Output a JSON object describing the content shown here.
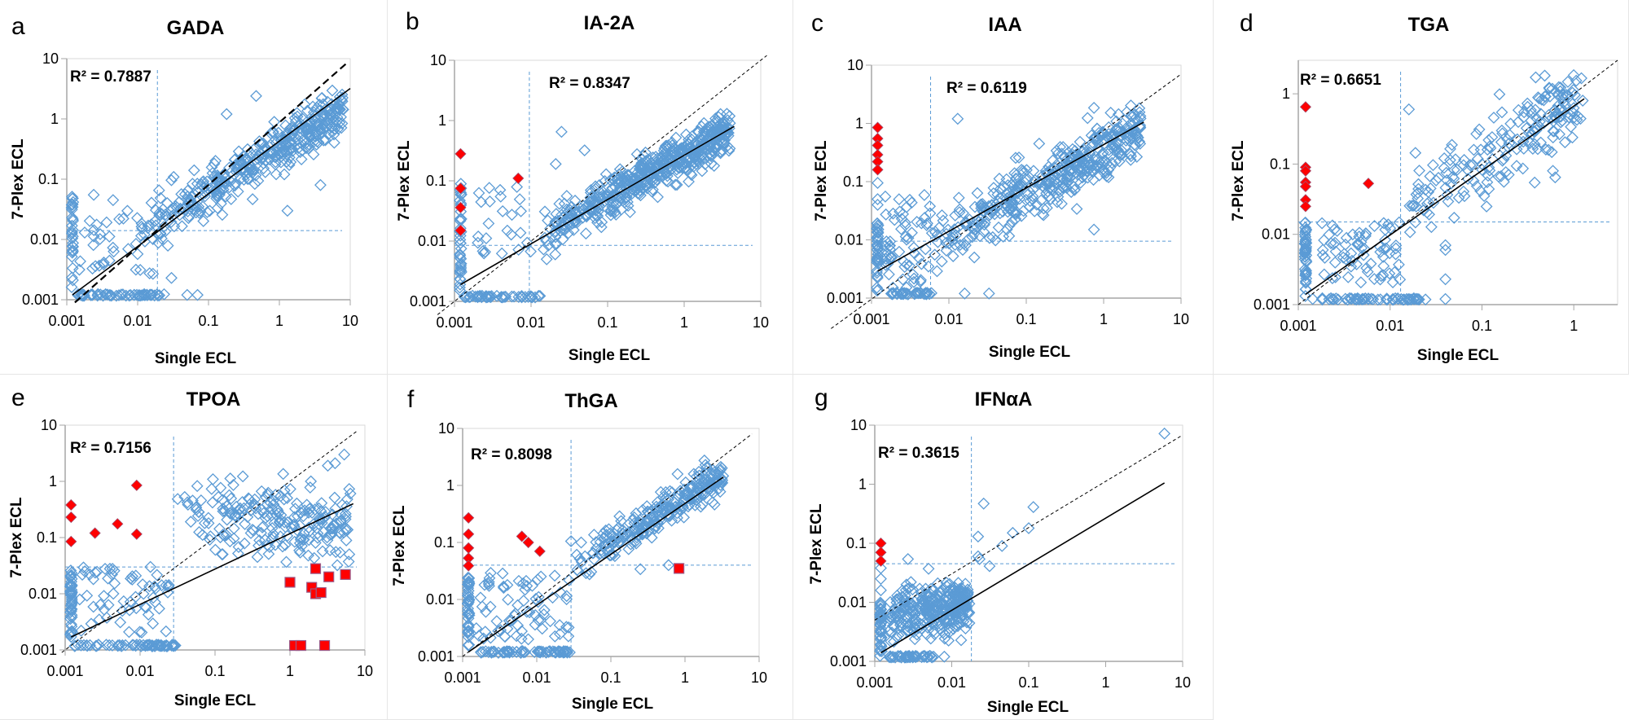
{
  "figure": {
    "colors": {
      "marker": "#5b9bd5",
      "highlight": "#ff0000",
      "fit_line": "#000000",
      "identity_line": "#000000",
      "cutoff_line": "#5b9bd5",
      "axis": "#a6a6a6"
    }
  },
  "chart_data": [
    {
      "id": "a",
      "letter": "a",
      "type": "scatter",
      "title": "GADA",
      "xlabel": "Single ECL",
      "ylabel": "7-Plex ECL",
      "xscale": "log",
      "yscale": "log",
      "xlim": [
        0.001,
        10
      ],
      "ylim": [
        0.001,
        10
      ],
      "xticks": [
        "0.001",
        "0.01",
        "0.1",
        "1",
        "10"
      ],
      "yticks": [
        "0.001",
        "0.01",
        "0.1",
        "1",
        "10"
      ],
      "r2_label": "R² = 0.7887",
      "r2": 0.7887,
      "cutoff_x": 0.019,
      "cutoff_y": 0.014,
      "fit_line": {
        "x": [
          0.0012,
          10
        ],
        "y": [
          0.0012,
          3.2
        ]
      },
      "identity_line": {
        "x": [
          0.0013,
          9
        ],
        "y": [
          0.0009,
          8.5
        ],
        "style": "bold-dash"
      },
      "cluster": {
        "x0": 0.015,
        "x1": 8,
        "y_at_x0": 0.017,
        "y_at_x1": 1.4,
        "spread": 0.35,
        "n": 380,
        "seed": 11
      },
      "low_cluster": {
        "x0": 0.0015,
        "x1": 0.018,
        "y0": 0.0025,
        "y1": 0.03,
        "n": 40,
        "seed": 12
      },
      "col_x": 0.0012,
      "col_y": [
        0.0012,
        0.07
      ],
      "col_n": 30,
      "row_y": 0.0012,
      "row_x": [
        0.0013,
        0.025
      ],
      "row_n": 60,
      "points": [
        [
          0.0024,
          0.055
        ],
        [
          0.0045,
          0.045
        ],
        [
          0.47,
          2.4
        ],
        [
          0.18,
          1.2
        ],
        [
          1.3,
          0.03
        ],
        [
          3.8,
          0.08
        ],
        [
          0.05,
          0.0012
        ],
        [
          0.07,
          0.0012
        ],
        [
          0.03,
          0.0023
        ]
      ],
      "highlight_diamonds": [],
      "highlight_squares": []
    },
    {
      "id": "b",
      "letter": "b",
      "type": "scatter",
      "title": "IA-2A",
      "xlabel": "Single ECL",
      "ylabel": "7-Plex ECL",
      "xscale": "log",
      "yscale": "log",
      "xlim": [
        0.001,
        10
      ],
      "ylim": [
        0.001,
        10
      ],
      "xticks": [
        "0.001",
        "0.01",
        "0.1",
        "1",
        "10"
      ],
      "yticks": [
        "0.001",
        "0.01",
        "0.1",
        "1",
        "10"
      ],
      "r2_label": "R² = 0.8347",
      "r2": 0.8347,
      "cutoff_x": 0.0095,
      "cutoff_y": 0.0085,
      "fit_line": {
        "x": [
          0.0012,
          4.5
        ],
        "y": [
          0.0019,
          0.8
        ]
      },
      "identity_line": {
        "x": [
          0.0006,
          12
        ],
        "y": [
          0.0006,
          12
        ],
        "style": "thin-dash"
      },
      "cluster": {
        "x0": 0.012,
        "x1": 4,
        "y_at_x0": 0.011,
        "y_at_x1": 0.7,
        "spread": 0.3,
        "n": 520,
        "seed": 21
      },
      "low_cluster": {
        "x0": 0.002,
        "x1": 0.01,
        "y0": 0.006,
        "y1": 0.08,
        "n": 25,
        "seed": 22
      },
      "col_x": 0.0012,
      "col_y": [
        0.0012,
        0.09
      ],
      "col_n": 40,
      "row_y": 0.0012,
      "row_x": [
        0.0013,
        0.014
      ],
      "row_n": 45,
      "points": [
        [
          0.025,
          0.65
        ],
        [
          0.05,
          0.32
        ],
        [
          0.021,
          0.19
        ],
        [
          0.016,
          0.005
        ]
      ],
      "highlight_diamonds": [
        [
          0.0012,
          0.28
        ],
        [
          0.0012,
          0.075
        ],
        [
          0.0012,
          0.036
        ],
        [
          0.0012,
          0.015
        ],
        [
          0.0068,
          0.11
        ]
      ],
      "highlight_squares": []
    },
    {
      "id": "c",
      "letter": "c",
      "type": "scatter",
      "title": "IAA",
      "xlabel": "Single ECL",
      "ylabel": "7-Plex ECL",
      "xscale": "log",
      "yscale": "log",
      "xlim": [
        0.001,
        10
      ],
      "ylim": [
        0.001,
        10
      ],
      "xticks": [
        "0.001",
        "0.01",
        "0.1",
        "1",
        "10"
      ],
      "yticks": [
        "0.001",
        "0.01",
        "0.1",
        "1",
        "10"
      ],
      "r2_label": "R² = 0.6119",
      "r2": 0.6119,
      "cutoff_x": 0.0058,
      "cutoff_y": 0.0095,
      "fit_line": {
        "x": [
          0.0012,
          3.3
        ],
        "y": [
          0.0029,
          1.05
        ]
      },
      "identity_line": {
        "x": [
          0.0003,
          10
        ],
        "y": [
          0.0003,
          7
        ],
        "style": "thin-dash"
      },
      "cluster": {
        "x0": 0.006,
        "x1": 3,
        "y_at_x0": 0.008,
        "y_at_x1": 0.8,
        "spread": 0.42,
        "n": 420,
        "seed": 31
      },
      "low_cluster": {
        "x0": 0.0015,
        "x1": 0.006,
        "y0": 0.0015,
        "y1": 0.06,
        "n": 60,
        "seed": 32
      },
      "col_x": 0.0012,
      "col_y": [
        0.0012,
        0.02
      ],
      "col_n": 45,
      "row_y": 0.0012,
      "row_x": [
        0.0018,
        0.006
      ],
      "row_n": 35,
      "points": [
        [
          0.0012,
          0.095
        ],
        [
          0.0012,
          0.05
        ],
        [
          0.0012,
          0.04
        ],
        [
          0.013,
          1.2
        ],
        [
          0.75,
          1.85
        ],
        [
          0.75,
          0.015
        ],
        [
          0.45,
          0.034
        ],
        [
          0.033,
          0.0012
        ],
        [
          0.016,
          0.0012
        ]
      ],
      "highlight_diamonds": [
        [
          0.0012,
          0.85
        ],
        [
          0.0012,
          0.55
        ],
        [
          0.0012,
          0.42
        ],
        [
          0.0012,
          0.29
        ],
        [
          0.0012,
          0.22
        ],
        [
          0.0012,
          0.16
        ]
      ],
      "highlight_squares": []
    },
    {
      "id": "d",
      "letter": "d",
      "type": "scatter",
      "title": "TGA",
      "xlabel": "Single ECL",
      "ylabel": "7-Plex ECL",
      "xscale": "log",
      "yscale": "log",
      "xlim": [
        0.001,
        3
      ],
      "ylim": [
        0.001,
        3
      ],
      "xticks": [
        "0.001",
        "0.01",
        "0.1",
        "1"
      ],
      "yticks": [
        "0.001",
        "0.01",
        "0.1",
        "1"
      ],
      "r2_label": "R² = 0.6651",
      "r2": 0.6651,
      "cutoff_x": 0.013,
      "cutoff_y": 0.015,
      "fit_line": {
        "x": [
          0.0012,
          1.3
        ],
        "y": [
          0.0014,
          0.85
        ]
      },
      "identity_line": {
        "x": [
          0.001,
          3
        ],
        "y": [
          0.001,
          3
        ],
        "style": "thin-dash"
      },
      "cluster": {
        "x0": 0.013,
        "x1": 1.3,
        "y_at_x0": 0.02,
        "y_at_x1": 0.9,
        "spread": 0.5,
        "n": 200,
        "seed": 41
      },
      "low_cluster": {
        "x0": 0.0017,
        "x1": 0.014,
        "y0": 0.002,
        "y1": 0.015,
        "n": 70,
        "seed": 42
      },
      "col_x": 0.0012,
      "col_y": [
        0.0012,
        0.015
      ],
      "col_n": 50,
      "row_y": 0.0012,
      "row_x": [
        0.0013,
        0.025
      ],
      "row_n": 60,
      "points": [
        [
          0.016,
          0.6
        ],
        [
          0.04,
          0.0012
        ],
        [
          0.04,
          0.0023
        ],
        [
          0.04,
          0.006
        ],
        [
          0.04,
          0.007
        ]
      ],
      "highlight_diamonds": [
        [
          0.0012,
          0.65
        ],
        [
          0.0012,
          0.09
        ],
        [
          0.0012,
          0.08
        ],
        [
          0.0012,
          0.055
        ],
        [
          0.0012,
          0.048
        ],
        [
          0.0012,
          0.031
        ],
        [
          0.0012,
          0.025
        ],
        [
          0.0058,
          0.053
        ]
      ],
      "highlight_squares": []
    },
    {
      "id": "e",
      "letter": "e",
      "type": "scatter",
      "title": "TPOA",
      "xlabel": "Single ECL",
      "ylabel": "7-Plex ECL",
      "xscale": "log",
      "yscale": "log",
      "xlim": [
        0.001,
        10
      ],
      "ylim": [
        0.001,
        10
      ],
      "xticks": [
        "0.001",
        "0.01",
        "0.1",
        "1",
        "10"
      ],
      "yticks": [
        "0.001",
        "0.01",
        "0.1",
        "1",
        "10"
      ],
      "r2_label": "R² = 0.7156",
      "r2": 0.7156,
      "cutoff_x": 0.028,
      "cutoff_y": 0.03,
      "fit_line": {
        "x": [
          0.0012,
          7
        ],
        "y": [
          0.0017,
          0.4
        ]
      },
      "identity_line": {
        "x": [
          0.0009,
          8
        ],
        "y": [
          0.0009,
          8
        ],
        "style": "thin-dash"
      },
      "cluster": {
        "x0": 0.03,
        "x1": 6.5,
        "y_at_x0": 0.3,
        "y_at_x1": 0.15,
        "spread": 0.5,
        "n": 220,
        "seed": 51
      },
      "low_cluster": {
        "x0": 0.0015,
        "x1": 0.028,
        "y0": 0.002,
        "y1": 0.03,
        "n": 60,
        "seed": 52
      },
      "col_x": 0.0012,
      "col_y": [
        0.0012,
        0.03
      ],
      "col_n": 45,
      "row_y": 0.0012,
      "row_x": [
        0.0013,
        0.035
      ],
      "row_n": 60,
      "points": [
        [
          5.3,
          3.0
        ],
        [
          4.0,
          2.1
        ],
        [
          3.2,
          1.9
        ],
        [
          1.9,
          1.0
        ]
      ],
      "highlight_diamonds": [
        [
          0.0012,
          0.38
        ],
        [
          0.0012,
          0.23
        ],
        [
          0.0012,
          0.085
        ],
        [
          0.0025,
          0.12
        ],
        [
          0.005,
          0.175
        ],
        [
          0.009,
          0.85
        ],
        [
          0.009,
          0.115
        ]
      ],
      "highlight_squares": [
        [
          1.0,
          0.016
        ],
        [
          1.95,
          0.013
        ],
        [
          2.2,
          0.028
        ],
        [
          2.2,
          0.01
        ],
        [
          2.6,
          0.0105
        ],
        [
          3.3,
          0.02
        ],
        [
          5.5,
          0.022
        ],
        [
          1.15,
          0.0012
        ],
        [
          1.4,
          0.0012
        ],
        [
          2.9,
          0.0012
        ]
      ]
    },
    {
      "id": "f",
      "letter": "f",
      "type": "scatter",
      "title": "ThGA",
      "xlabel": "Single ECL",
      "ylabel": "7-Plex ECL",
      "xscale": "log",
      "yscale": "log",
      "xlim": [
        0.001,
        10
      ],
      "ylim": [
        0.001,
        10
      ],
      "xticks": [
        "0.001",
        "0.01",
        "0.1",
        "1",
        "10"
      ],
      "yticks": [
        "0.001",
        "0.01",
        "0.1",
        "1",
        "10"
      ],
      "r2_label": "R² = 0.8098",
      "r2": 0.8098,
      "cutoff_x": 0.029,
      "cutoff_y": 0.04,
      "fit_line": {
        "x": [
          0.0012,
          3.3
        ],
        "y": [
          0.0012,
          1.4
        ]
      },
      "identity_line": {
        "x": [
          0.001,
          8
        ],
        "y": [
          0.001,
          8
        ],
        "style": "thin-dash"
      },
      "cluster": {
        "x0": 0.03,
        "x1": 3.3,
        "y_at_x0": 0.04,
        "y_at_x1": 1.5,
        "spread": 0.28,
        "n": 260,
        "seed": 61
      },
      "low_cluster": {
        "x0": 0.0015,
        "x1": 0.028,
        "y0": 0.002,
        "y1": 0.03,
        "n": 70,
        "seed": 62
      },
      "col_x": 0.0012,
      "col_y": [
        0.0012,
        0.025
      ],
      "col_n": 45,
      "row_y": 0.0012,
      "row_x": [
        0.0015,
        0.028
      ],
      "row_n": 60,
      "points": [
        [
          0.6,
          0.04
        ],
        [
          0.25,
          0.034
        ],
        [
          0.029,
          0.105
        ]
      ],
      "highlight_diamonds": [
        [
          0.0012,
          0.27
        ],
        [
          0.0012,
          0.14
        ],
        [
          0.0012,
          0.08
        ],
        [
          0.0012,
          0.053
        ],
        [
          0.0012,
          0.039
        ],
        [
          0.0063,
          0.128
        ],
        [
          0.0077,
          0.1
        ],
        [
          0.011,
          0.07
        ]
      ],
      "highlight_squares": [
        [
          0.83,
          0.035
        ]
      ]
    },
    {
      "id": "g",
      "letter": "g",
      "type": "scatter",
      "title": "IFNαA",
      "xlabel": "Single ECL",
      "ylabel": "7-Plex ECL",
      "xscale": "log",
      "yscale": "log",
      "xlim": [
        0.001,
        10
      ],
      "ylim": [
        0.001,
        10
      ],
      "xticks": [
        "0.001",
        "0.01",
        "0.1",
        "1",
        "10"
      ],
      "yticks": [
        "0.001",
        "0.01",
        "0.1",
        "1",
        "10"
      ],
      "r2_label": "R² = 0.3615",
      "r2": 0.3615,
      "cutoff_x": 0.018,
      "cutoff_y": 0.045,
      "fit_line": {
        "x": [
          0.0012,
          5.8
        ],
        "y": [
          0.0014,
          1.05
        ]
      },
      "identity_line": {
        "x": [
          0.001,
          10
        ],
        "y": [
          0.005,
          6.8
        ],
        "style": "thin-dash"
      },
      "cluster": {
        "x0": 0.0015,
        "x1": 0.017,
        "y_at_x0": 0.006,
        "y_at_x1": 0.01,
        "spread": 0.35,
        "n": 240,
        "seed": 71
      },
      "low_cluster": {
        "x0": 0.0015,
        "x1": 0.016,
        "y0": 0.002,
        "y1": 0.018,
        "n": 60,
        "seed": 72
      },
      "col_x": 0.0012,
      "col_y": [
        0.0012,
        0.01
      ],
      "col_n": 40,
      "row_y": 0.0012,
      "row_x": [
        0.0015,
        0.006
      ],
      "row_n": 40,
      "points": [
        [
          5.8,
          7.2
        ],
        [
          0.026,
          0.47
        ],
        [
          0.115,
          0.41
        ],
        [
          0.1,
          0.18
        ],
        [
          0.062,
          0.15
        ],
        [
          0.045,
          0.09
        ],
        [
          0.022,
          0.13
        ],
        [
          0.022,
          0.06
        ],
        [
          0.023,
          0.054
        ],
        [
          0.031,
          0.041
        ],
        [
          0.0027,
          0.054
        ],
        [
          0.005,
          0.037
        ],
        [
          0.0012,
          0.038
        ],
        [
          0.0012,
          0.025
        ],
        [
          0.0012,
          0.016
        ],
        [
          0.008,
          0.0012
        ]
      ],
      "highlight_diamonds": [
        [
          0.0012,
          0.1
        ],
        [
          0.0012,
          0.07
        ],
        [
          0.0012,
          0.05
        ]
      ],
      "highlight_squares": []
    }
  ]
}
